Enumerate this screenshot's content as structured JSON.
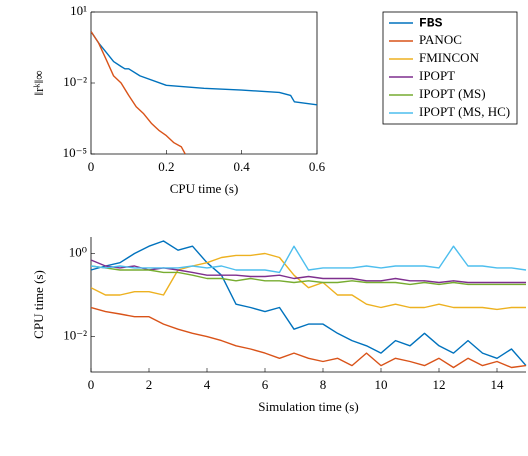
{
  "chart_data": [
    {
      "type": "line",
      "log_y": true,
      "xlabel": "CPU time (s)",
      "ylabel": "‖rᵏ‖∞",
      "xlim": [
        0,
        0.6
      ],
      "xticks": [
        0,
        0.2,
        0.4,
        0.6
      ],
      "ylim": [
        1e-05,
        10
      ],
      "yticks": [
        {
          "value": 1e-05,
          "label": "10⁻⁵"
        },
        {
          "value": 0.01,
          "label": "10⁻²"
        },
        {
          "value": 10,
          "label": "10¹"
        }
      ],
      "series": [
        {
          "color": "#0072bd",
          "x": [
            0,
            0.02,
            0.04,
            0.06,
            0.08,
            0.09,
            0.1,
            0.13,
            0.2,
            0.3,
            0.4,
            0.5,
            0.53,
            0.54,
            0.6
          ],
          "values": [
            1.5,
            0.5,
            0.2,
            0.08,
            0.05,
            0.04,
            0.04,
            0.02,
            0.008,
            0.006,
            0.005,
            0.004,
            0.003,
            0.0016,
            0.0012
          ]
        },
        {
          "color": "#d95319",
          "x": [
            0,
            0.02,
            0.04,
            0.06,
            0.08,
            0.1,
            0.12,
            0.14,
            0.16,
            0.18,
            0.2,
            0.22,
            0.24,
            0.25
          ],
          "values": [
            1.5,
            0.5,
            0.1,
            0.02,
            0.01,
            0.003,
            0.001,
            0.0005,
            0.0002,
            0.0001,
            6e-05,
            3e-05,
            2e-05,
            1e-05
          ]
        }
      ]
    },
    {
      "type": "line",
      "log_y": true,
      "xlabel": "Simulation time (s)",
      "ylabel": "CPU time (s)",
      "legend": "top right",
      "xlim": [
        0,
        15
      ],
      "xticks": [
        0,
        2,
        4,
        6,
        8,
        10,
        12,
        14
      ],
      "ylim": [
        0.0014,
        2.5
      ],
      "yticks": [
        {
          "value": 0.01,
          "label": "10⁻²"
        },
        {
          "value": 1,
          "label": "10⁰"
        }
      ],
      "x": [
        0,
        0.5,
        1,
        1.5,
        2,
        2.5,
        3,
        3.5,
        4,
        4.5,
        5,
        5.5,
        6,
        6.5,
        7,
        7.5,
        8,
        8.5,
        9,
        9.5,
        10,
        10.5,
        11,
        11.5,
        12,
        12.5,
        13,
        13.5,
        14,
        14.5,
        15
      ],
      "series": [
        {
          "name": "FBS",
          "color": "#0072bd",
          "values": [
            0.4,
            0.5,
            0.6,
            1.0,
            1.5,
            2.0,
            1.2,
            1.5,
            0.6,
            0.3,
            0.06,
            0.05,
            0.04,
            0.05,
            0.015,
            0.02,
            0.02,
            0.012,
            0.008,
            0.006,
            0.004,
            0.008,
            0.006,
            0.012,
            0.006,
            0.004,
            0.008,
            0.004,
            0.003,
            0.005,
            0.002
          ]
        },
        {
          "name": "PANOC",
          "color": "#d95319",
          "values": [
            0.05,
            0.04,
            0.035,
            0.03,
            0.03,
            0.02,
            0.015,
            0.012,
            0.01,
            0.008,
            0.006,
            0.005,
            0.004,
            0.003,
            0.004,
            0.003,
            0.0025,
            0.003,
            0.002,
            0.004,
            0.002,
            0.003,
            0.0025,
            0.002,
            0.003,
            0.0018,
            0.003,
            0.002,
            0.0025,
            0.0018,
            0.002
          ]
        },
        {
          "name": "FMINCON",
          "color": "#edb120",
          "values": [
            0.15,
            0.1,
            0.1,
            0.12,
            0.12,
            0.1,
            0.4,
            0.5,
            0.6,
            0.8,
            0.9,
            0.9,
            1.0,
            0.8,
            0.3,
            0.15,
            0.2,
            0.1,
            0.1,
            0.06,
            0.05,
            0.06,
            0.05,
            0.05,
            0.06,
            0.05,
            0.05,
            0.05,
            0.045,
            0.05,
            0.05
          ]
        },
        {
          "name": "IPOPT",
          "color": "#7e2f8e",
          "values": [
            0.7,
            0.5,
            0.45,
            0.5,
            0.4,
            0.45,
            0.4,
            0.35,
            0.3,
            0.3,
            0.3,
            0.28,
            0.28,
            0.3,
            0.25,
            0.28,
            0.25,
            0.25,
            0.25,
            0.22,
            0.22,
            0.25,
            0.22,
            0.22,
            0.2,
            0.22,
            0.2,
            0.2,
            0.2,
            0.2,
            0.2
          ]
        },
        {
          "name": "IPOPT (MS)",
          "color": "#77ac30",
          "values": [
            0.5,
            0.45,
            0.4,
            0.4,
            0.4,
            0.35,
            0.35,
            0.3,
            0.25,
            0.25,
            0.22,
            0.25,
            0.22,
            0.22,
            0.2,
            0.22,
            0.2,
            0.2,
            0.22,
            0.2,
            0.2,
            0.2,
            0.18,
            0.2,
            0.18,
            0.2,
            0.18,
            0.18,
            0.18,
            0.18,
            0.18
          ]
        },
        {
          "name": "IPOPT (MS, HC)",
          "color": "#4dbeee",
          "values": [
            0.5,
            0.45,
            0.5,
            0.45,
            0.45,
            0.45,
            0.45,
            0.5,
            0.45,
            0.5,
            0.4,
            0.4,
            0.4,
            0.35,
            1.5,
            0.4,
            0.45,
            0.45,
            0.45,
            0.5,
            0.45,
            0.5,
            0.5,
            0.5,
            0.45,
            1.5,
            0.5,
            0.5,
            0.45,
            0.45,
            0.4
          ]
        }
      ]
    }
  ]
}
